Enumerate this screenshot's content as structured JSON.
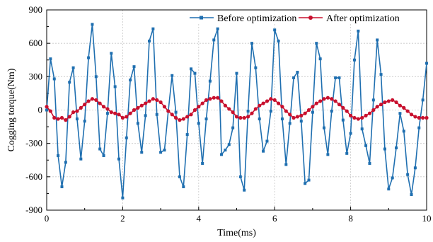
{
  "chart_data": {
    "type": "line",
    "title": "",
    "xlabel": "Time(ms)",
    "ylabel": "Cogging torque(Nm)",
    "xlim": [
      0,
      10
    ],
    "ylim": [
      -900,
      900
    ],
    "x_ticks": [
      0,
      2,
      4,
      6,
      8,
      10
    ],
    "x_tick_labels": [
      "0",
      "2",
      "4",
      "6",
      "8",
      "10"
    ],
    "y_ticks": [
      -900,
      -600,
      -300,
      0,
      300,
      600,
      900
    ],
    "y_tick_labels": [
      "-900",
      "-600",
      "-300",
      "0",
      "300",
      "600",
      "900"
    ],
    "grid": true,
    "legend_position": "top-right",
    "series": [
      {
        "name": "Before optimization",
        "color": "#1f6fb0",
        "marker": "square",
        "x": [
          0.0,
          0.1,
          0.2,
          0.3,
          0.4,
          0.5,
          0.6,
          0.7,
          0.8,
          0.9,
          1.0,
          1.1,
          1.2,
          1.3,
          1.4,
          1.5,
          1.6,
          1.7,
          1.8,
          1.9,
          2.0,
          2.1,
          2.2,
          2.3,
          2.4,
          2.5,
          2.6,
          2.7,
          2.8,
          2.9,
          3.0,
          3.1,
          3.2,
          3.3,
          3.4,
          3.5,
          3.6,
          3.7,
          3.8,
          3.9,
          4.0,
          4.1,
          4.2,
          4.3,
          4.4,
          4.5,
          4.6,
          4.7,
          4.8,
          4.9,
          5.0,
          5.1,
          5.2,
          5.3,
          5.4,
          5.5,
          5.6,
          5.7,
          5.8,
          5.9,
          6.0,
          6.1,
          6.2,
          6.3,
          6.4,
          6.5,
          6.6,
          6.7,
          6.8,
          6.9,
          7.0,
          7.1,
          7.2,
          7.3,
          7.4,
          7.5,
          7.6,
          7.7,
          7.8,
          7.9,
          8.0,
          8.1,
          8.2,
          8.3,
          8.4,
          8.5,
          8.6,
          8.7,
          8.8,
          8.9,
          9.0,
          9.1,
          9.2,
          9.3,
          9.4,
          9.5,
          9.6,
          9.7,
          9.8,
          9.9,
          10.0
        ],
        "y": [
          0,
          460,
          280,
          -410,
          -690,
          -470,
          250,
          380,
          -80,
          -440,
          -100,
          470,
          770,
          300,
          -350,
          -410,
          -30,
          510,
          210,
          -440,
          -790,
          -250,
          270,
          390,
          -120,
          -380,
          -50,
          620,
          730,
          -40,
          -380,
          -360,
          -10,
          310,
          -20,
          -600,
          -690,
          -220,
          370,
          330,
          -120,
          -480,
          -80,
          260,
          630,
          730,
          -400,
          -360,
          -310,
          -160,
          330,
          -600,
          -720,
          -10,
          600,
          380,
          -80,
          -370,
          -280,
          -10,
          720,
          620,
          -80,
          -490,
          -120,
          290,
          340,
          -100,
          -660,
          -630,
          -20,
          600,
          460,
          -160,
          -400,
          -10,
          290,
          290,
          -90,
          -390,
          -210,
          450,
          710,
          -170,
          -320,
          -480,
          90,
          630,
          320,
          -350,
          -710,
          -610,
          -340,
          -30,
          -190,
          -580,
          -760,
          -520,
          -160,
          90,
          420
        ]
      },
      {
        "name": "After optimization",
        "color": "#c8102e",
        "marker": "circle",
        "x": [
          0.0,
          0.1,
          0.2,
          0.3,
          0.4,
          0.5,
          0.6,
          0.7,
          0.8,
          0.9,
          1.0,
          1.1,
          1.2,
          1.3,
          1.4,
          1.5,
          1.6,
          1.7,
          1.8,
          1.9,
          2.0,
          2.1,
          2.2,
          2.3,
          2.4,
          2.5,
          2.6,
          2.7,
          2.8,
          2.9,
          3.0,
          3.1,
          3.2,
          3.3,
          3.4,
          3.5,
          3.6,
          3.7,
          3.8,
          3.9,
          4.0,
          4.1,
          4.2,
          4.3,
          4.4,
          4.5,
          4.6,
          4.7,
          4.8,
          4.9,
          5.0,
          5.1,
          5.2,
          5.3,
          5.4,
          5.5,
          5.6,
          5.7,
          5.8,
          5.9,
          6.0,
          6.1,
          6.2,
          6.3,
          6.4,
          6.5,
          6.6,
          6.7,
          6.8,
          6.9,
          7.0,
          7.1,
          7.2,
          7.3,
          7.4,
          7.5,
          7.6,
          7.7,
          7.8,
          7.9,
          8.0,
          8.1,
          8.2,
          8.3,
          8.4,
          8.5,
          8.6,
          8.7,
          8.8,
          8.9,
          9.0,
          9.1,
          9.2,
          9.3,
          9.4,
          9.5,
          9.6,
          9.7,
          9.8,
          9.9,
          10.0
        ],
        "y": [
          30,
          -10,
          -70,
          -80,
          -70,
          -90,
          -60,
          -20,
          -10,
          20,
          50,
          80,
          100,
          90,
          60,
          30,
          10,
          -20,
          -30,
          -40,
          -70,
          -60,
          -30,
          0,
          20,
          40,
          60,
          80,
          100,
          90,
          70,
          30,
          -10,
          -40,
          -70,
          -90,
          -80,
          -60,
          -40,
          0,
          30,
          60,
          90,
          100,
          110,
          110,
          80,
          40,
          10,
          -20,
          -60,
          -70,
          -70,
          -60,
          -30,
          10,
          40,
          60,
          80,
          100,
          90,
          60,
          30,
          -10,
          -40,
          -70,
          -60,
          -50,
          -30,
          0,
          30,
          60,
          80,
          100,
          110,
          100,
          80,
          50,
          20,
          -10,
          -50,
          -70,
          -80,
          -70,
          -50,
          -30,
          0,
          30,
          50,
          70,
          80,
          90,
          70,
          40,
          20,
          -10,
          -40,
          -60,
          -70,
          -70,
          -70
        ]
      }
    ]
  }
}
